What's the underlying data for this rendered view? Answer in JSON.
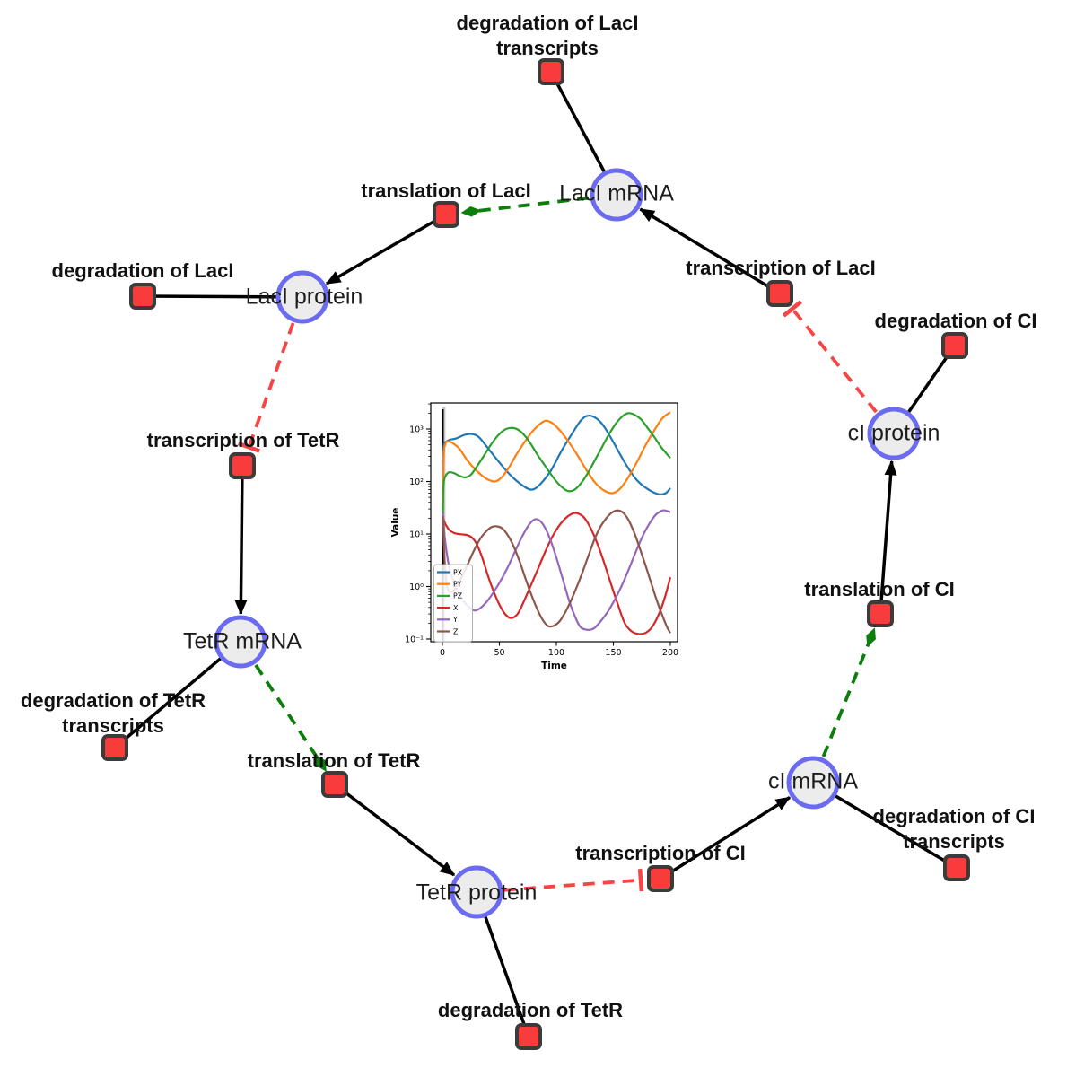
{
  "colors": {
    "species_fill": "#ececec",
    "species_border": "#6b6bf2",
    "reaction_fill": "#f83b3b",
    "reaction_border": "#3b3b3b",
    "edge": "#000000",
    "activation_edge": "#0c7e0c",
    "inhibition_edge": "#f74545"
  },
  "diagram": {
    "species": {
      "lacI_mRNA": {
        "label": "LacI mRNA"
      },
      "lacI_protein": {
        "label": "LacI protein"
      },
      "tetR_mRNA": {
        "label": "TetR mRNA"
      },
      "tetR_protein": {
        "label": "TetR protein"
      },
      "cI_mRNA": {
        "label": "cI mRNA"
      },
      "cI_protein": {
        "label": "cI protein"
      }
    },
    "reactions": {
      "deg_lacI_tr": {
        "label": "degradation of LacI transcripts"
      },
      "transl_lacI": {
        "label": "translation of LacI"
      },
      "deg_lacI": {
        "label": "degradation of LacI"
      },
      "transcr_lacI": {
        "label": "transcription of LacI"
      },
      "deg_cI": {
        "label": "degradation of CI"
      },
      "transcr_tetR": {
        "label": "transcription of TetR"
      },
      "deg_tetR_tr": {
        "label": "degradation of TetR transcripts"
      },
      "transl_tetR": {
        "label": "translation of TetR"
      },
      "transl_cI": {
        "label": "translation of CI"
      },
      "transcr_cI": {
        "label": "transcription of CI"
      },
      "deg_tetR": {
        "label": "degradation of TetR"
      },
      "deg_cI_tr": {
        "label": "degradation of CI transcripts"
      }
    }
  },
  "chart_data": {
    "type": "line",
    "title": "",
    "xlabel": "Time",
    "ylabel": "Value",
    "x_range": [
      0,
      200
    ],
    "y_scale": "log",
    "y_range_exponents": [
      -1.05,
      3.5
    ],
    "xticks": [
      0,
      50,
      100,
      150,
      200
    ],
    "xtick_labels": [
      "0",
      "50",
      "100",
      "150",
      "200"
    ],
    "ytick_exponents": [
      -1,
      0,
      1,
      2,
      3
    ],
    "ytick_labels": [
      "10⁻¹",
      "10⁰",
      "10¹",
      "10²",
      "10³"
    ],
    "grid": false,
    "legend_position": "lower left",
    "vline_x": 0,
    "series": [
      {
        "name": "PX",
        "color": "#1f77b4",
        "points": [
          [
            0.5,
            80
          ],
          [
            1,
            450
          ],
          [
            3,
            560
          ],
          [
            6,
            620
          ],
          [
            12,
            660
          ],
          [
            20,
            780
          ],
          [
            26,
            800
          ],
          [
            32,
            700
          ],
          [
            40,
            430
          ],
          [
            50,
            230
          ],
          [
            60,
            130
          ],
          [
            70,
            85
          ],
          [
            78,
            70
          ],
          [
            85,
            85
          ],
          [
            95,
            160
          ],
          [
            105,
            400
          ],
          [
            115,
            900
          ],
          [
            122,
            1500
          ],
          [
            128,
            1800
          ],
          [
            135,
            1600
          ],
          [
            142,
            1100
          ],
          [
            150,
            560
          ],
          [
            160,
            230
          ],
          [
            170,
            110
          ],
          [
            180,
            72
          ],
          [
            190,
            57
          ],
          [
            196,
            60
          ],
          [
            200,
            75
          ]
        ]
      },
      {
        "name": "PY",
        "color": "#ff7f0e",
        "points": [
          [
            0.5,
            30
          ],
          [
            1,
            300
          ],
          [
            3,
            540
          ],
          [
            6,
            580
          ],
          [
            10,
            520
          ],
          [
            15,
            420
          ],
          [
            22,
            250
          ],
          [
            30,
            160
          ],
          [
            38,
            115
          ],
          [
            46,
            100
          ],
          [
            52,
            120
          ],
          [
            58,
            180
          ],
          [
            65,
            330
          ],
          [
            72,
            560
          ],
          [
            80,
            950
          ],
          [
            89,
            1400
          ],
          [
            95,
            1350
          ],
          [
            102,
            1000
          ],
          [
            110,
            600
          ],
          [
            118,
            330
          ],
          [
            126,
            170
          ],
          [
            134,
            95
          ],
          [
            142,
            67
          ],
          [
            149,
            60
          ],
          [
            155,
            70
          ],
          [
            162,
            110
          ],
          [
            170,
            220
          ],
          [
            178,
            480
          ],
          [
            186,
            950
          ],
          [
            193,
            1600
          ],
          [
            200,
            2100
          ]
        ]
      },
      {
        "name": "PZ",
        "color": "#2ca02c",
        "points": [
          [
            0.5,
            25
          ],
          [
            1,
            90
          ],
          [
            3,
            130
          ],
          [
            6,
            150
          ],
          [
            10,
            145
          ],
          [
            15,
            128
          ],
          [
            20,
            120
          ],
          [
            25,
            135
          ],
          [
            30,
            190
          ],
          [
            36,
            300
          ],
          [
            42,
            480
          ],
          [
            48,
            720
          ],
          [
            54,
            950
          ],
          [
            60,
            1050
          ],
          [
            66,
            980
          ],
          [
            72,
            760
          ],
          [
            78,
            500
          ],
          [
            84,
            310
          ],
          [
            90,
            200
          ],
          [
            96,
            130
          ],
          [
            103,
            85
          ],
          [
            110,
            66
          ],
          [
            116,
            70
          ],
          [
            122,
            95
          ],
          [
            128,
            150
          ],
          [
            134,
            260
          ],
          [
            140,
            450
          ],
          [
            146,
            780
          ],
          [
            152,
            1250
          ],
          [
            158,
            1750
          ],
          [
            163,
            2000
          ],
          [
            168,
            1900
          ],
          [
            174,
            1550
          ],
          [
            180,
            1050
          ],
          [
            186,
            700
          ],
          [
            192,
            450
          ],
          [
            200,
            280
          ]
        ]
      },
      {
        "name": "X",
        "color": "#d62728",
        "points": [
          [
            0.5,
            20
          ],
          [
            3,
            15
          ],
          [
            6,
            12
          ],
          [
            10,
            10.5
          ],
          [
            14,
            10
          ],
          [
            18,
            9.8
          ],
          [
            22,
            9.5
          ],
          [
            26,
            8.5
          ],
          [
            30,
            6.5
          ],
          [
            35,
            3.5
          ],
          [
            40,
            1.6
          ],
          [
            45,
            0.8
          ],
          [
            50,
            0.45
          ],
          [
            55,
            0.3
          ],
          [
            60,
            0.25
          ],
          [
            66,
            0.3
          ],
          [
            72,
            0.55
          ],
          [
            78,
            1.1
          ],
          [
            84,
            2.2
          ],
          [
            90,
            4.5
          ],
          [
            96,
            8.5
          ],
          [
            102,
            14
          ],
          [
            108,
            20
          ],
          [
            114,
            24.5
          ],
          [
            118,
            25
          ],
          [
            124,
            21
          ],
          [
            130,
            13
          ],
          [
            136,
            6.5
          ],
          [
            142,
            2.8
          ],
          [
            148,
            1.1
          ],
          [
            154,
            0.45
          ],
          [
            160,
            0.2
          ],
          [
            166,
            0.14
          ],
          [
            172,
            0.125
          ],
          [
            178,
            0.13
          ],
          [
            184,
            0.17
          ],
          [
            190,
            0.3
          ],
          [
            195,
            0.6
          ],
          [
            200,
            1.5
          ]
        ]
      },
      {
        "name": "Y",
        "color": "#9467bd",
        "points": [
          [
            0.5,
            25
          ],
          [
            2,
            9
          ],
          [
            5,
            3
          ],
          [
            8,
            1.6
          ],
          [
            12,
            0.95
          ],
          [
            16,
            0.65
          ],
          [
            20,
            0.48
          ],
          [
            25,
            0.38
          ],
          [
            29,
            0.35
          ],
          [
            34,
            0.4
          ],
          [
            40,
            0.55
          ],
          [
            46,
            0.85
          ],
          [
            52,
            1.4
          ],
          [
            58,
            2.5
          ],
          [
            64,
            4.8
          ],
          [
            70,
            9
          ],
          [
            76,
            15
          ],
          [
            81,
            19
          ],
          [
            86,
            17.5
          ],
          [
            91,
            12
          ],
          [
            96,
            6.5
          ],
          [
            101,
            3
          ],
          [
            106,
            1.3
          ],
          [
            111,
            0.55
          ],
          [
            116,
            0.28
          ],
          [
            121,
            0.17
          ],
          [
            127,
            0.15
          ],
          [
            133,
            0.16
          ],
          [
            139,
            0.22
          ],
          [
            145,
            0.33
          ],
          [
            151,
            0.55
          ],
          [
            157,
            1
          ],
          [
            163,
            2
          ],
          [
            169,
            4.2
          ],
          [
            175,
            8.5
          ],
          [
            181,
            15
          ],
          [
            187,
            23
          ],
          [
            193,
            28
          ],
          [
            197,
            27.5
          ],
          [
            200,
            26
          ]
        ]
      },
      {
        "name": "Z",
        "color": "#8c564b",
        "points": [
          [
            0.5,
            22
          ],
          [
            1.5,
            5
          ],
          [
            3,
            1.5
          ],
          [
            5,
            0.85
          ],
          [
            8,
            0.8
          ],
          [
            11,
            0.9
          ],
          [
            14,
            1.15
          ],
          [
            18,
            1.7
          ],
          [
            23,
            2.9
          ],
          [
            28,
            5
          ],
          [
            33,
            8
          ],
          [
            38,
            11
          ],
          [
            43,
            13.5
          ],
          [
            48,
            14
          ],
          [
            53,
            12.5
          ],
          [
            58,
            9
          ],
          [
            63,
            5.5
          ],
          [
            68,
            2.9
          ],
          [
            73,
            1.4
          ],
          [
            78,
            0.7
          ],
          [
            83,
            0.38
          ],
          [
            88,
            0.23
          ],
          [
            93,
            0.175
          ],
          [
            98,
            0.18
          ],
          [
            103,
            0.22
          ],
          [
            108,
            0.33
          ],
          [
            113,
            0.55
          ],
          [
            118,
            1
          ],
          [
            123,
            1.9
          ],
          [
            128,
            3.8
          ],
          [
            133,
            7.5
          ],
          [
            138,
            13
          ],
          [
            143,
            19
          ],
          [
            148,
            25
          ],
          [
            153,
            28
          ],
          [
            158,
            26
          ],
          [
            163,
            19
          ],
          [
            168,
            11
          ],
          [
            173,
            5.5
          ],
          [
            178,
            2.6
          ],
          [
            183,
            1.2
          ],
          [
            188,
            0.55
          ],
          [
            193,
            0.28
          ],
          [
            197,
            0.17
          ],
          [
            200,
            0.13
          ]
        ]
      }
    ]
  }
}
